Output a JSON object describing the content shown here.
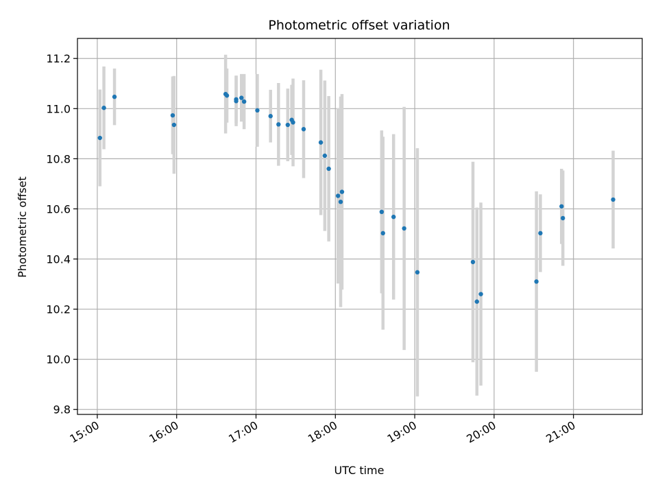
{
  "chart_data": {
    "type": "scatter",
    "title": "Photometric offset variation",
    "xlabel": "UTC time",
    "ylabel": "Photometric offset",
    "x_ticks": [
      "15:00",
      "16:00",
      "17:00",
      "18:00",
      "19:00",
      "20:00",
      "21:00"
    ],
    "y_ticks": [
      "9.8",
      "10.0",
      "10.2",
      "10.4",
      "10.6",
      "10.8",
      "11.0",
      "11.2"
    ],
    "xlim": [
      "14:45",
      "21:52"
    ],
    "ylim": [
      9.78,
      11.28
    ],
    "grid": true,
    "colors": {
      "points": "#1f77b4",
      "errorbars": "#d3d3d3",
      "grid": "#b0b0b0"
    },
    "points": [
      {
        "t": "15:02",
        "y": 10.883,
        "err": 0.193
      },
      {
        "t": "15:05",
        "y": 11.003,
        "err": 0.165
      },
      {
        "t": "15:13",
        "y": 11.047,
        "err": 0.113
      },
      {
        "t": "15:57",
        "y": 10.973,
        "err": 0.155
      },
      {
        "t": "15:58",
        "y": 10.935,
        "err": 0.195
      },
      {
        "t": "16:37",
        "y": 11.058,
        "err": 0.157
      },
      {
        "t": "16:38",
        "y": 11.052,
        "err": 0.108
      },
      {
        "t": "16:45",
        "y": 11.037,
        "err": 0.095
      },
      {
        "t": "16:45",
        "y": 11.03,
        "err": 0.1
      },
      {
        "t": "16:49",
        "y": 11.043,
        "err": 0.095
      },
      {
        "t": "16:51",
        "y": 11.028,
        "err": 0.11
      },
      {
        "t": "17:01",
        "y": 10.993,
        "err": 0.145
      },
      {
        "t": "17:11",
        "y": 10.97,
        "err": 0.105
      },
      {
        "t": "17:17",
        "y": 10.937,
        "err": 0.165
      },
      {
        "t": "17:24",
        "y": 10.935,
        "err": 0.145
      },
      {
        "t": "17:27",
        "y": 10.955,
        "err": 0.14
      },
      {
        "t": "17:28",
        "y": 10.945,
        "err": 0.175
      },
      {
        "t": "17:36",
        "y": 10.918,
        "err": 0.195
      },
      {
        "t": "17:49",
        "y": 10.865,
        "err": 0.29
      },
      {
        "t": "17:52",
        "y": 10.812,
        "err": 0.3
      },
      {
        "t": "17:55",
        "y": 10.76,
        "err": 0.29
      },
      {
        "t": "18:02",
        "y": 10.652,
        "err": 0.35
      },
      {
        "t": "18:04",
        "y": 10.628,
        "err": 0.42
      },
      {
        "t": "18:05",
        "y": 10.668,
        "err": 0.39
      },
      {
        "t": "18:35",
        "y": 10.588,
        "err": 0.325
      },
      {
        "t": "18:36",
        "y": 10.503,
        "err": 0.385
      },
      {
        "t": "18:44",
        "y": 10.568,
        "err": 0.33
      },
      {
        "t": "18:52",
        "y": 10.522,
        "err": 0.485
      },
      {
        "t": "19:02",
        "y": 10.347,
        "err": 0.495
      },
      {
        "t": "19:44",
        "y": 10.388,
        "err": 0.4
      },
      {
        "t": "19:47",
        "y": 10.23,
        "err": 0.375
      },
      {
        "t": "19:50",
        "y": 10.26,
        "err": 0.365
      },
      {
        "t": "20:32",
        "y": 10.31,
        "err": 0.36
      },
      {
        "t": "20:35",
        "y": 10.503,
        "err": 0.155
      },
      {
        "t": "20:51",
        "y": 10.61,
        "err": 0.15
      },
      {
        "t": "20:52",
        "y": 10.563,
        "err": 0.19
      },
      {
        "t": "21:30",
        "y": 10.637,
        "err": 0.195
      }
    ]
  }
}
